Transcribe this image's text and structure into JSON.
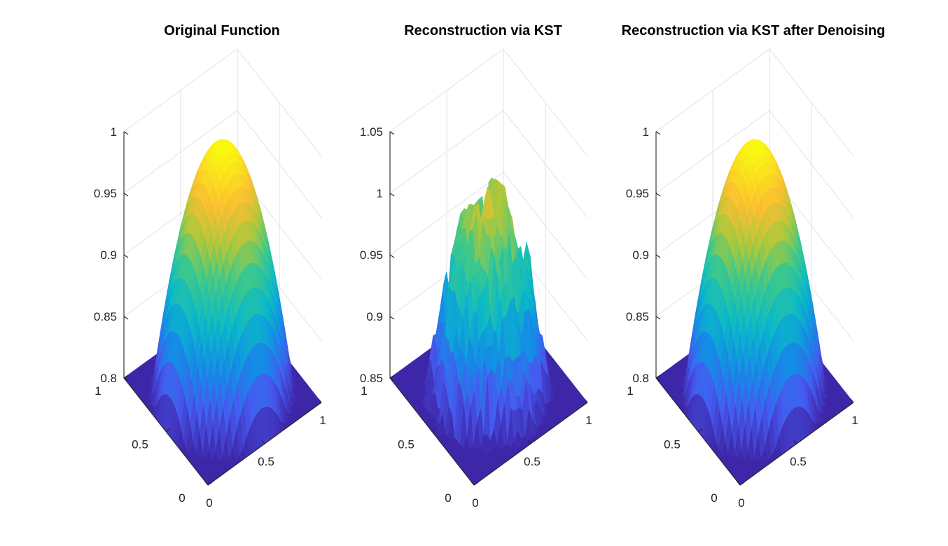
{
  "figure": {
    "background": "#ffffff"
  },
  "chart_data": [
    {
      "type": "surface",
      "title": "Original Function",
      "function": "smooth concave surface peaking at z = 1 at the center of the unit square",
      "x": {
        "range": [
          0,
          1
        ],
        "ticks": [
          0,
          0.5,
          1
        ],
        "tick_labels": [
          "0",
          "0.5",
          "1"
        ]
      },
      "y": {
        "range": [
          0,
          1
        ],
        "ticks": [
          0,
          0.5,
          1
        ],
        "tick_labels": [
          "0",
          "0.5",
          "1"
        ]
      },
      "z": {
        "range": [
          0.8,
          1
        ],
        "ticks": [
          0.8,
          0.85,
          0.9,
          0.95,
          1
        ],
        "tick_labels": [
          "0.8",
          "0.85",
          "0.9",
          "0.95",
          "1"
        ]
      },
      "noise": 0,
      "colormap": "parula",
      "grid": true
    },
    {
      "type": "surface",
      "title": "Reconstruction via KST",
      "function": "noisy reconstruction of the same surface with block-shaped artifacts",
      "x": {
        "range": [
          0,
          1
        ],
        "ticks": [
          0,
          0.5,
          1
        ],
        "tick_labels": [
          "0",
          "0.5",
          "1"
        ]
      },
      "y": {
        "range": [
          0,
          1
        ],
        "ticks": [
          0,
          0.5,
          1
        ],
        "tick_labels": [
          "0",
          "0.5",
          "1"
        ]
      },
      "z": {
        "range": [
          0.85,
          1.05
        ],
        "ticks": [
          0.85,
          0.9,
          0.95,
          1,
          1.05
        ],
        "tick_labels": [
          "0.85",
          "0.9",
          "0.95",
          "1",
          "1.05"
        ]
      },
      "noise": 0.02,
      "colormap": "parula",
      "grid": true
    },
    {
      "type": "surface",
      "title": "Reconstruction via KST after Denoising",
      "function": "smooth concave surface peaking at z = 1 at the center of the unit square",
      "x": {
        "range": [
          0,
          1
        ],
        "ticks": [
          0,
          0.5,
          1
        ],
        "tick_labels": [
          "0",
          "0.5",
          "1"
        ]
      },
      "y": {
        "range": [
          0,
          1
        ],
        "ticks": [
          0,
          0.5,
          1
        ],
        "tick_labels": [
          "0",
          "0.5",
          "1"
        ]
      },
      "z": {
        "range": [
          0.8,
          1
        ],
        "ticks": [
          0.8,
          0.85,
          0.9,
          0.95,
          1
        ],
        "tick_labels": [
          "0.8",
          "0.85",
          "0.9",
          "0.95",
          "1"
        ]
      },
      "noise": 0,
      "colormap": "parula",
      "grid": true
    }
  ]
}
